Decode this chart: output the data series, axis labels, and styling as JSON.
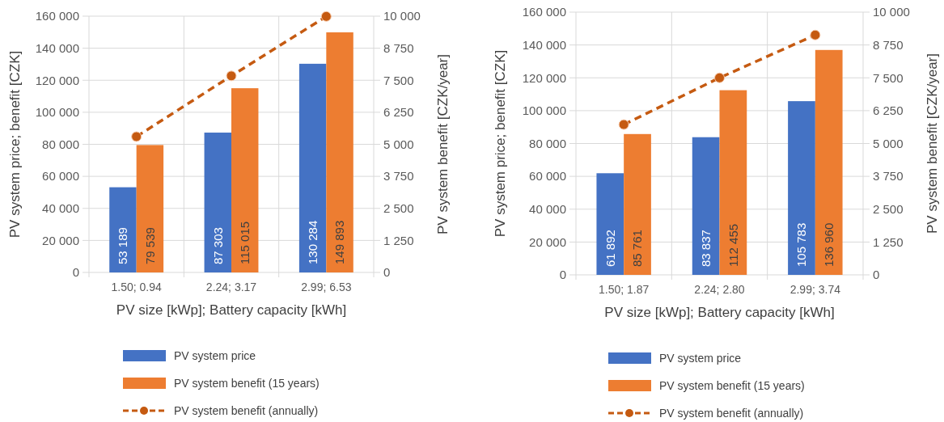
{
  "chart_data": [
    {
      "type": "bar",
      "categories": [
        "1.50; 0.94",
        "2.24; 3.17",
        "2.99; 6.53"
      ],
      "xlabel": "PV size [kWp]; Battery capacity [kWh]",
      "ylabel": "PV system price; benefit [CZK]",
      "y2label": "PV system benefit [CZK/year]",
      "series": [
        {
          "name": "PV system price",
          "color": "#4472c4",
          "values": [
            53189,
            87303,
            130284
          ],
          "value_labels": [
            "53 189",
            "87 303",
            "130 284"
          ]
        },
        {
          "name": "PV system benefit (15 years)",
          "color": "#ed7d31",
          "values": [
            79539,
            115015,
            149893
          ],
          "value_labels": [
            "79 539",
            "115 015",
            "149 893"
          ]
        },
        {
          "name": "PV system benefit (annually)",
          "type": "line",
          "axis": "y2",
          "color": "#c55a11",
          "marker": "circle",
          "line_style": "dashed",
          "values": [
            5300,
            7670,
            9990
          ]
        }
      ],
      "ylim": [
        0,
        160000
      ],
      "yticks": [
        0,
        {
          "value": 20000,
          "label": "20 000"
        },
        {
          "value": 40000,
          "label": "40 000"
        },
        {
          "value": 60000,
          "label": "60 000"
        },
        {
          "value": 80000,
          "label": "80 000"
        },
        {
          "value": 100000,
          "label": "100 000"
        },
        {
          "value": 120000,
          "label": "120 000"
        },
        {
          "value": 140000,
          "label": "140 000"
        },
        {
          "value": 160000,
          "label": "160 000"
        }
      ],
      "y2lim": [
        0,
        10000
      ],
      "y2ticks": [
        0,
        {
          "value": 1250,
          "label": "1 250"
        },
        {
          "value": 2500,
          "label": "2 500"
        },
        {
          "value": 3750,
          "label": "3 750"
        },
        {
          "value": 5000,
          "label": "5 000"
        },
        {
          "value": 6250,
          "label": "6 250"
        },
        {
          "value": 7500,
          "label": "7 500"
        },
        {
          "value": 8750,
          "label": "8 750"
        },
        {
          "value": 10000,
          "label": "10 000"
        }
      ],
      "grid": true,
      "legend": "bottom"
    },
    {
      "type": "bar",
      "categories": [
        "1.50; 1.87",
        "2.24; 2.80",
        "2.99; 3.74"
      ],
      "xlabel": "PV size [kWp]; Battery capacity [kWh]",
      "ylabel": "PV system price; benefit [CZK]",
      "y2label": "PV system benefit [CZK/year]",
      "series": [
        {
          "name": "PV system price",
          "color": "#4472c4",
          "values": [
            61892,
            83837,
            105783
          ],
          "value_labels": [
            "61 892",
            "83 837",
            "105 783"
          ]
        },
        {
          "name": "PV system benefit (15 years)",
          "color": "#ed7d31",
          "values": [
            85761,
            112455,
            136960
          ],
          "value_labels": [
            "85 761",
            "112 455",
            "136 960"
          ]
        },
        {
          "name": "PV system benefit (annually)",
          "type": "line",
          "axis": "y2",
          "color": "#c55a11",
          "marker": "circle",
          "line_style": "dashed",
          "values": [
            5720,
            7500,
            9130
          ]
        }
      ],
      "ylim": [
        0,
        160000
      ],
      "yticks": [
        0,
        {
          "value": 20000,
          "label": "20 000"
        },
        {
          "value": 40000,
          "label": "40 000"
        },
        {
          "value": 60000,
          "label": "60 000"
        },
        {
          "value": 80000,
          "label": "80 000"
        },
        {
          "value": 100000,
          "label": "100 000"
        },
        {
          "value": 120000,
          "label": "120 000"
        },
        {
          "value": 140000,
          "label": "140 000"
        },
        {
          "value": 160000,
          "label": "160 000"
        }
      ],
      "y2lim": [
        0,
        10000
      ],
      "y2ticks": [
        0,
        {
          "value": 1250,
          "label": "1 250"
        },
        {
          "value": 2500,
          "label": "2 500"
        },
        {
          "value": 3750,
          "label": "3 750"
        },
        {
          "value": 5000,
          "label": "5 000"
        },
        {
          "value": 6250,
          "label": "6 250"
        },
        {
          "value": 7500,
          "label": "7 500"
        },
        {
          "value": 8750,
          "label": "8 750"
        },
        {
          "value": 10000,
          "label": "10 000"
        }
      ],
      "grid": true,
      "legend": "bottom"
    }
  ]
}
